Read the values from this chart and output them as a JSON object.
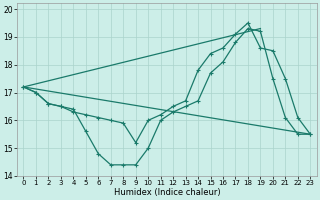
{
  "xlabel": "Humidex (Indice chaleur)",
  "bg_color": "#cceee8",
  "line_color": "#1a7a6a",
  "grid_color": "#aad4cc",
  "xlim": [
    -0.5,
    23.5
  ],
  "ylim": [
    14,
    20.2
  ],
  "yticks": [
    14,
    15,
    16,
    17,
    18,
    19,
    20
  ],
  "xticks": [
    0,
    1,
    2,
    3,
    4,
    5,
    6,
    7,
    8,
    9,
    10,
    11,
    12,
    13,
    14,
    15,
    16,
    17,
    18,
    19,
    20,
    21,
    22,
    23
  ],
  "curve1_x": [
    0,
    1,
    2,
    3,
    4,
    5,
    6,
    7,
    8,
    9,
    10,
    11,
    12,
    13,
    14,
    15,
    16,
    17,
    18,
    19,
    20,
    21,
    22,
    23
  ],
  "curve1_y": [
    17.2,
    17.0,
    16.6,
    16.5,
    16.4,
    15.6,
    14.8,
    14.4,
    14.4,
    14.4,
    15.0,
    16.0,
    16.3,
    16.5,
    16.7,
    17.7,
    18.1,
    18.8,
    19.3,
    19.2,
    17.5,
    16.1,
    15.5,
    15.5
  ],
  "curve2_x": [
    0,
    1,
    2,
    3,
    4,
    5,
    6,
    7,
    8,
    9,
    10,
    11,
    12,
    13,
    14,
    15,
    16,
    17,
    18,
    19,
    20,
    21,
    22,
    23
  ],
  "curve2_y": [
    17.2,
    17.0,
    16.6,
    16.5,
    16.3,
    16.2,
    16.1,
    16.0,
    15.9,
    15.2,
    16.0,
    16.2,
    16.5,
    16.7,
    17.8,
    18.4,
    18.6,
    19.1,
    19.5,
    18.6,
    18.5,
    17.5,
    16.1,
    15.5
  ],
  "trend1_x": [
    0,
    19
  ],
  "trend1_y": [
    17.2,
    19.3
  ],
  "trend2_x": [
    0,
    23
  ],
  "trend2_y": [
    17.2,
    15.5
  ]
}
